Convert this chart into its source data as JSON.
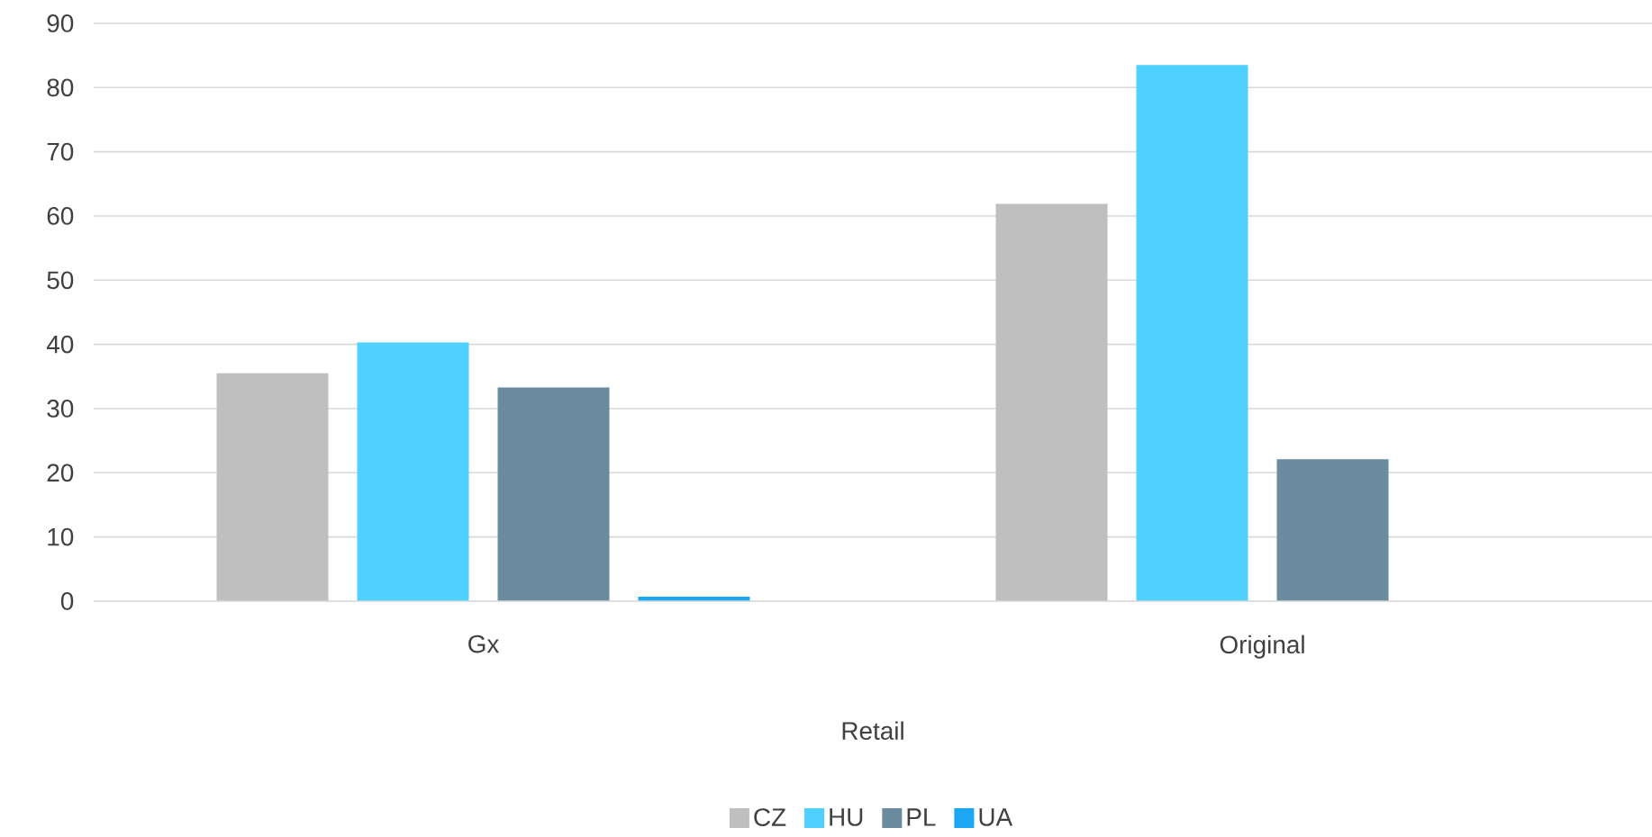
{
  "chart_data": {
    "type": "bar",
    "xlabel": "Retail",
    "categories": [
      "Gx",
      "Original"
    ],
    "series": [
      {
        "name": "CZ",
        "color": "#bfbfbf",
        "values": [
          35.5,
          61.9
        ]
      },
      {
        "name": "HU",
        "color": "#4fd1ff",
        "values": [
          40.3,
          83.5
        ]
      },
      {
        "name": "PL",
        "color": "#6b8b9f",
        "values": [
          33.3,
          22.1
        ]
      },
      {
        "name": "UA",
        "color": "#1ca7f5",
        "values": [
          0.7,
          0
        ]
      }
    ],
    "ylim": [
      0,
      90
    ],
    "yticks": [
      0,
      10,
      20,
      30,
      40,
      50,
      60,
      70,
      80,
      90
    ],
    "grid": "y",
    "legend": "bottom"
  }
}
